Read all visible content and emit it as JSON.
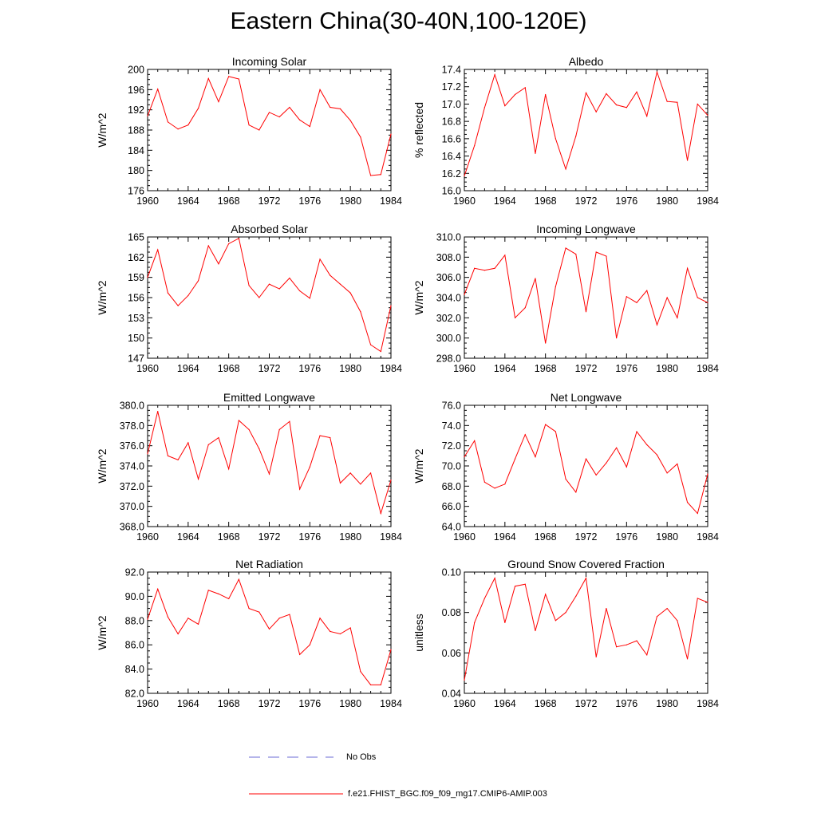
{
  "title": "Eastern China(30-40N,100-120E)",
  "years": [
    1960,
    1961,
    1962,
    1963,
    1964,
    1965,
    1966,
    1967,
    1968,
    1969,
    1970,
    1971,
    1972,
    1973,
    1974,
    1975,
    1976,
    1977,
    1978,
    1979,
    1980,
    1981,
    1982,
    1983,
    1984
  ],
  "chart_data": [
    {
      "type": "line",
      "title": "Incoming Solar",
      "ylabel": "W/m^2",
      "xlim": [
        1960,
        1984
      ],
      "ylim": [
        176,
        200
      ],
      "yticks": [
        176,
        180,
        184,
        188,
        192,
        196,
        200
      ],
      "ytick_labels": [
        "176",
        "180",
        "184",
        "188",
        "192",
        "196",
        "200"
      ],
      "xticks": [
        1960,
        1964,
        1968,
        1972,
        1976,
        1980,
        1984
      ],
      "values": [
        190.8,
        196.1,
        189.6,
        188.2,
        189.0,
        192.3,
        198.2,
        193.6,
        198.6,
        198.1,
        189.0,
        188.0,
        191.5,
        190.6,
        192.5,
        190.0,
        188.7,
        196.0,
        192.5,
        192.2,
        189.9,
        186.6,
        179.0,
        179.2,
        187.2
      ]
    },
    {
      "type": "line",
      "title": "Albedo",
      "ylabel": "% reflected",
      "xlim": [
        1960,
        1984
      ],
      "ylim": [
        16.0,
        17.4
      ],
      "yticks": [
        16.0,
        16.2,
        16.4,
        16.6,
        16.8,
        17.0,
        17.2,
        17.4
      ],
      "ytick_labels": [
        "16.0",
        "16.2",
        "16.4",
        "16.6",
        "16.8",
        "17.0",
        "17.2",
        "17.4"
      ],
      "xticks": [
        1960,
        1964,
        1968,
        1972,
        1976,
        1980,
        1984
      ],
      "values": [
        16.17,
        16.52,
        16.96,
        17.34,
        16.98,
        17.11,
        17.19,
        16.43,
        17.11,
        16.6,
        16.25,
        16.63,
        17.13,
        16.91,
        17.12,
        16.99,
        16.96,
        17.14,
        16.86,
        17.37,
        17.03,
        17.02,
        16.35,
        17.0,
        16.87
      ]
    },
    {
      "type": "line",
      "title": "Absorbed Solar",
      "ylabel": "W/m^2",
      "xlim": [
        1960,
        1984
      ],
      "ylim": [
        147,
        165
      ],
      "yticks": [
        147,
        150,
        153,
        156,
        159,
        162,
        165
      ],
      "ytick_labels": [
        "147",
        "150",
        "153",
        "156",
        "159",
        "162",
        "165"
      ],
      "xticks": [
        1960,
        1964,
        1968,
        1972,
        1976,
        1980,
        1984
      ],
      "values": [
        159.0,
        163.1,
        156.7,
        154.8,
        156.3,
        158.5,
        163.7,
        161.0,
        164.0,
        164.8,
        157.8,
        156.0,
        158.0,
        157.3,
        158.9,
        157.0,
        155.9,
        161.7,
        159.3,
        158.0,
        156.7,
        153.9,
        149.0,
        148.0,
        154.8
      ]
    },
    {
      "type": "line",
      "title": "Incoming Longwave",
      "ylabel": "W/m^2",
      "xlim": [
        1960,
        1984
      ],
      "ylim": [
        298.0,
        310.0
      ],
      "yticks": [
        298,
        300,
        302,
        304,
        306,
        308,
        310
      ],
      "ytick_labels": [
        "298.0",
        "300.0",
        "302.0",
        "304.0",
        "306.0",
        "308.0",
        "310.0"
      ],
      "xticks": [
        1960,
        1964,
        1968,
        1972,
        1976,
        1980,
        1984
      ],
      "values": [
        304.3,
        306.9,
        306.7,
        306.9,
        308.2,
        302.0,
        303.0,
        305.9,
        299.5,
        305.1,
        308.9,
        308.3,
        302.6,
        308.5,
        308.1,
        300.0,
        304.1,
        303.5,
        304.7,
        301.3,
        304.0,
        302.0,
        306.9,
        304.0,
        303.5
      ]
    },
    {
      "type": "line",
      "title": "Emitted Longwave",
      "ylabel": "W/m^2",
      "xlim": [
        1960,
        1984
      ],
      "ylim": [
        368.0,
        380.0
      ],
      "yticks": [
        368,
        370,
        372,
        374,
        376,
        378,
        380
      ],
      "ytick_labels": [
        "368.0",
        "370.0",
        "372.0",
        "374.0",
        "376.0",
        "378.0",
        "380.0"
      ],
      "xticks": [
        1960,
        1964,
        1968,
        1972,
        1976,
        1980,
        1984
      ],
      "values": [
        375.2,
        379.4,
        375.0,
        374.6,
        376.3,
        372.7,
        376.1,
        376.8,
        373.7,
        378.5,
        377.6,
        375.7,
        373.2,
        377.6,
        378.4,
        371.7,
        373.9,
        377.0,
        376.8,
        372.3,
        373.3,
        372.2,
        373.3,
        369.3,
        372.6
      ]
    },
    {
      "type": "line",
      "title": "Net Longwave",
      "ylabel": "W/m^2",
      "xlim": [
        1960,
        1984
      ],
      "ylim": [
        64.0,
        76.0
      ],
      "yticks": [
        64,
        66,
        68,
        70,
        72,
        74,
        76
      ],
      "ytick_labels": [
        "64.0",
        "66.0",
        "68.0",
        "70.0",
        "72.0",
        "74.0",
        "76.0"
      ],
      "xticks": [
        1960,
        1964,
        1968,
        1972,
        1976,
        1980,
        1984
      ],
      "values": [
        70.9,
        72.5,
        68.4,
        67.8,
        68.2,
        70.7,
        73.1,
        70.9,
        74.1,
        73.4,
        68.7,
        67.4,
        70.7,
        69.1,
        70.3,
        71.8,
        69.9,
        73.4,
        72.1,
        71.1,
        69.3,
        70.2,
        66.4,
        65.3,
        69.2
      ]
    },
    {
      "type": "line",
      "title": "Net Radiation",
      "ylabel": "W/m^2",
      "xlim": [
        1960,
        1984
      ],
      "ylim": [
        82.0,
        92.0
      ],
      "yticks": [
        82,
        84,
        86,
        88,
        90,
        92
      ],
      "ytick_labels": [
        "82.0",
        "84.0",
        "86.0",
        "88.0",
        "90.0",
        "92.0"
      ],
      "xticks": [
        1960,
        1964,
        1968,
        1972,
        1976,
        1980,
        1984
      ],
      "values": [
        88.1,
        90.6,
        88.3,
        86.9,
        88.2,
        87.7,
        90.5,
        90.2,
        89.8,
        91.4,
        89.0,
        88.7,
        87.3,
        88.2,
        88.5,
        85.2,
        86.0,
        88.2,
        87.1,
        86.9,
        87.4,
        83.8,
        82.7,
        82.7,
        85.6
      ]
    },
    {
      "type": "line",
      "title": "Ground Snow Covered Fraction",
      "ylabel": "unitless",
      "xlim": [
        1960,
        1984
      ],
      "ylim": [
        0.04,
        0.1
      ],
      "yticks": [
        0.04,
        0.06,
        0.08,
        0.1
      ],
      "ytick_labels": [
        "0.04",
        "0.06",
        "0.08",
        "0.10"
      ],
      "xticks": [
        1960,
        1964,
        1968,
        1972,
        1976,
        1980,
        1984
      ],
      "values": [
        0.0465,
        0.075,
        0.087,
        0.097,
        0.075,
        0.093,
        0.094,
        0.071,
        0.089,
        0.076,
        0.08,
        0.088,
        0.097,
        0.058,
        0.082,
        0.063,
        0.064,
        0.066,
        0.059,
        0.078,
        0.082,
        0.076,
        0.057,
        0.087,
        0.085
      ]
    }
  ],
  "legend": {
    "obs_label": "No Obs",
    "model_label": "f.e21.FHIST_BGC.f09_f09_mg17.CMIP6-AMIP.003",
    "obs_color": "#6b6bd6",
    "model_color": "#ff0000"
  }
}
